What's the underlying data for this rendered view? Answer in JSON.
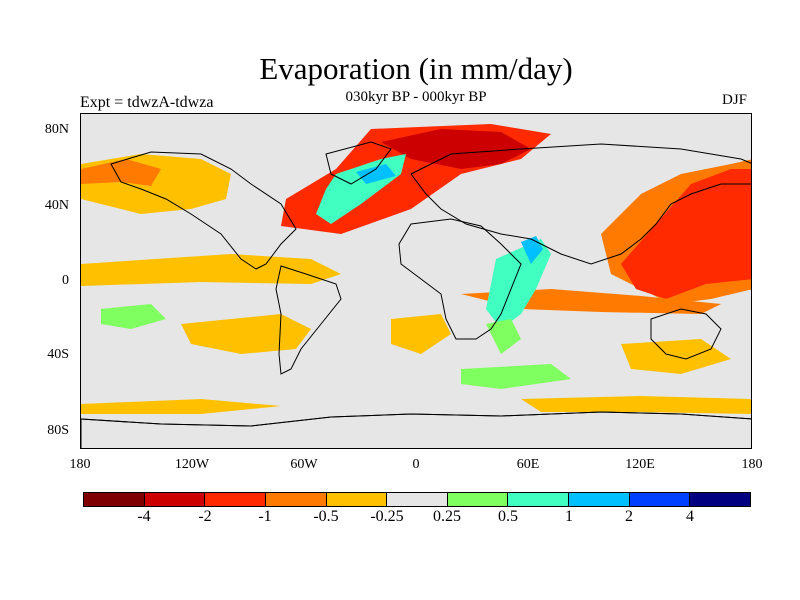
{
  "title": "Evaporation (in mm/day)",
  "subtitle": "030kyr BP - 000kyr BP",
  "left_label": "Expt = tdwzA-tdwza",
  "right_label": "DJF",
  "axes": {
    "y_labels": [
      "80N",
      "40N",
      "0",
      "40S",
      "80S"
    ],
    "x_labels": [
      "180",
      "120W",
      "60W",
      "0",
      "60E",
      "120E",
      "180"
    ]
  },
  "colorbar": {
    "colors": [
      "#7f0000",
      "#cc0000",
      "#ff2a00",
      "#ff7a00",
      "#ffc000",
      "#e6e6e6",
      "#80ff60",
      "#40ffc0",
      "#00c0ff",
      "#0040ff",
      "#000080"
    ],
    "labels": [
      "-4",
      "-2",
      "-1",
      "-0.5",
      "-0.25",
      "0.25",
      "0.5",
      "1",
      "2",
      "4"
    ]
  },
  "map": {
    "background_color": "#e6e6e6",
    "coastline_color": "#000000"
  }
}
